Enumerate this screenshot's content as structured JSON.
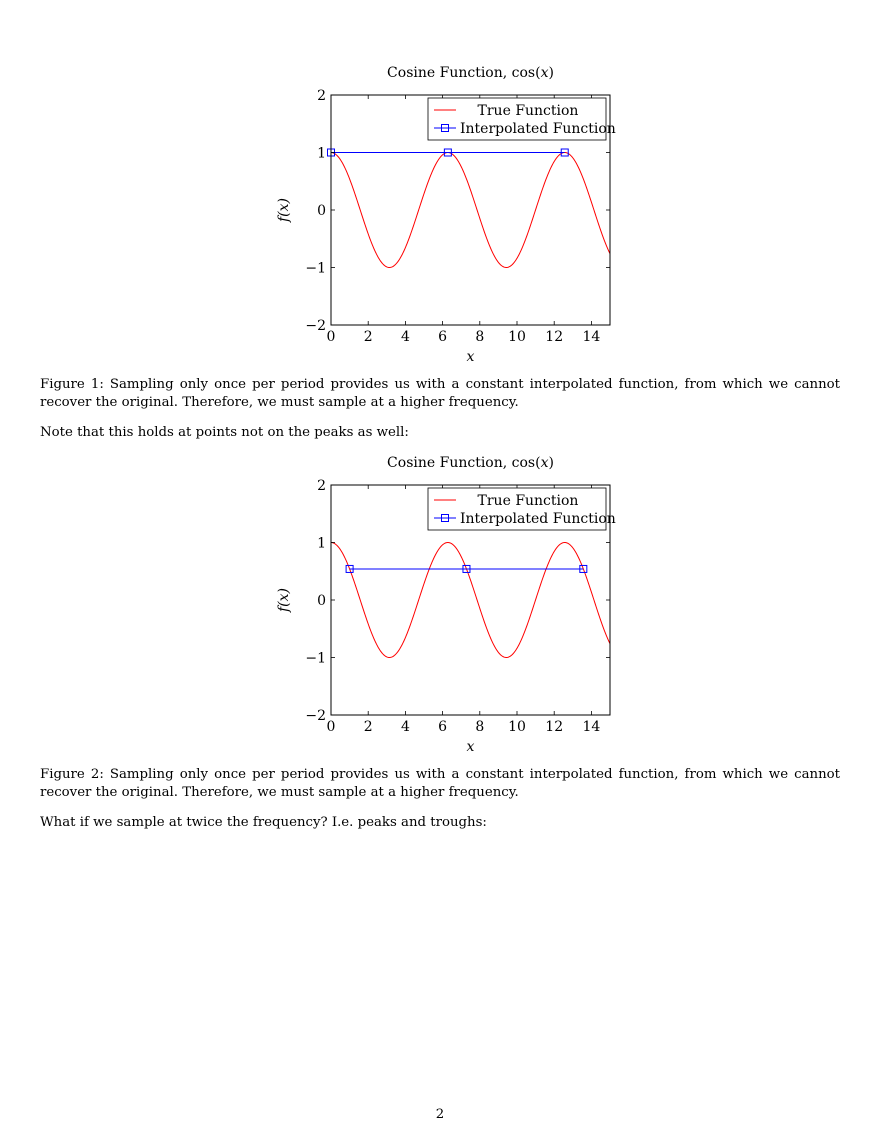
{
  "figures": [
    {
      "caption": "Figure 1: Sampling only once per period provides us with a constant interpolated function, from which we cannot recover the original. Therefore, we must sample at a higher frequency."
    },
    {
      "caption": "Figure 2: Sampling only once per period provides us with a constant interpolated function, from which we cannot recover the original. Therefore, we must sample at a higher frequency."
    }
  ],
  "paragraphs": {
    "note_between": "Note that this holds at points not on the peaks as well:",
    "closing": "What if we sample at twice the frequency? I.e. peaks and troughs:"
  },
  "page_number": "2",
  "colors": {
    "true_function": "#ff0000",
    "interpolated_function": "#0000ff"
  },
  "chart_data": [
    {
      "type": "line",
      "title_prefix": "Cosine Function, cos(",
      "title_var": "x",
      "title_suffix": ")",
      "xlabel": "x",
      "ylabel": "f(x)",
      "xlim": [
        0,
        15
      ],
      "ylim": [
        -2,
        2
      ],
      "x_ticks": [
        0,
        2,
        4,
        6,
        8,
        10,
        12,
        14
      ],
      "y_ticks": [
        -2,
        -1,
        0,
        1,
        2
      ],
      "y_tick_labels": [
        "−2",
        "−1",
        "0",
        "1",
        "2"
      ],
      "legend_placement": "top-right",
      "series": [
        {
          "name": "True Function",
          "function": "cos(x)",
          "x_range": [
            0,
            15
          ],
          "color": "#ff0000",
          "marker": "none"
        },
        {
          "name": "Interpolated Function",
          "color": "#0000ff",
          "marker": "square",
          "x": [
            0,
            6.283,
            12.566
          ],
          "y": [
            1,
            1,
            1
          ]
        }
      ]
    },
    {
      "type": "line",
      "title_prefix": "Cosine Function, cos(",
      "title_var": "x",
      "title_suffix": ")",
      "xlabel": "x",
      "ylabel": "f(x)",
      "xlim": [
        0,
        15
      ],
      "ylim": [
        -2,
        2
      ],
      "x_ticks": [
        0,
        2,
        4,
        6,
        8,
        10,
        12,
        14
      ],
      "y_ticks": [
        -2,
        -1,
        0,
        1,
        2
      ],
      "y_tick_labels": [
        "−2",
        "−1",
        "0",
        "1",
        "2"
      ],
      "legend_placement": "top-right",
      "series": [
        {
          "name": "True Function",
          "function": "cos(x)",
          "x_range": [
            0,
            15
          ],
          "color": "#ff0000",
          "marker": "none"
        },
        {
          "name": "Interpolated Function",
          "color": "#0000ff",
          "marker": "square",
          "x": [
            1,
            7.283,
            13.566
          ],
          "y": [
            0.54,
            0.54,
            0.54
          ]
        }
      ]
    }
  ]
}
